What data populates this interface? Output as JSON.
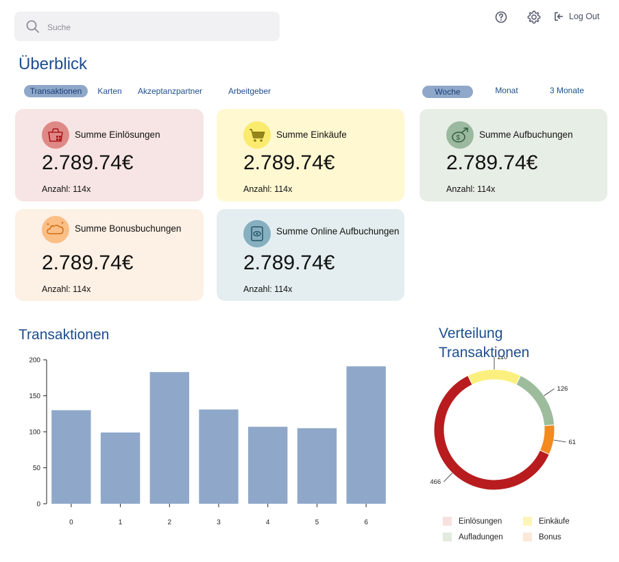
{
  "search": {
    "placeholder": "Suche"
  },
  "header": {
    "help_icon": "help-circle-icon",
    "settings_icon": "gear-icon",
    "logout_label": "Log Out"
  },
  "page_title": "Überblick",
  "tabs": [
    {
      "label": "Transaktionen",
      "active": true
    },
    {
      "label": "Karten",
      "active": false
    },
    {
      "label": "Akzeptanzpartner",
      "active": false
    },
    {
      "label": "Arbeitgeber",
      "active": false
    }
  ],
  "periods": [
    {
      "label": "Woche",
      "active": true
    },
    {
      "label": "Monat",
      "active": false
    },
    {
      "label": "3 Monate",
      "active": false
    }
  ],
  "cards": [
    {
      "label": "Summe Einlösungen",
      "amount": "2.789.74€",
      "count": "Anzahl: 114x",
      "bg": "#f6e5e4",
      "icon_bg": "#df8987",
      "icon": "shopping-basket-icon"
    },
    {
      "label": "Summe Einkäufe",
      "amount": "2.789.74€",
      "count": "Anzahl: 114x",
      "bg": "#fff8d1",
      "icon_bg": "#faea6e",
      "icon": "shopping-cart-icon"
    },
    {
      "label": "Summe Aufbuchungen",
      "amount": "2.789.74€",
      "count": "Anzahl: 114x",
      "bg": "#e7eee5",
      "icon_bg": "#9bb99e",
      "icon": "dollar-arrow-icon"
    },
    {
      "label": "Summe Bonusbuchungen",
      "amount": "2.789.74€",
      "count": "Anzahl: 114x",
      "bg": "#fdf0e4",
      "icon_bg": "#fbbf86",
      "icon": "bonus-cloud-icon"
    },
    {
      "label": "Summe Online Aufbuchungen",
      "amount": "2.789.74€",
      "count": "Anzahl: 114x",
      "bg": "#e4eef0",
      "icon_bg": "#86afc0",
      "icon": "online-wallet-icon"
    }
  ],
  "transactions_title": "Transaktionen",
  "distribution_title_line1": "Verteilung",
  "distribution_title_line2": "Transaktionen",
  "colors": {
    "accent": "#1d4d8d",
    "bar": "#8fa8c9"
  },
  "chart_data": [
    {
      "type": "bar",
      "categories": [
        "0",
        "1",
        "2",
        "3",
        "4",
        "5",
        "6"
      ],
      "values": [
        130,
        99,
        183,
        131,
        107,
        105,
        191
      ],
      "ylim": [
        0,
        200
      ],
      "yticks": [
        0,
        50,
        100,
        150,
        200
      ],
      "title": "Transaktionen",
      "xlabel": "",
      "ylabel": "",
      "grid": false,
      "color": "#8fa8c9"
    },
    {
      "type": "pie",
      "donut": true,
      "title": "Verteilung Transaktionen",
      "slices": [
        {
          "label": "Einkäufe",
          "value": 110,
          "color": "#fbf07e"
        },
        {
          "label": "Aufladungen",
          "value": 126,
          "color": "#9dbc9c"
        },
        {
          "label": "Bonus",
          "value": 61,
          "color": "#f28a1e"
        },
        {
          "label": "Einlösungen",
          "value": 466,
          "color": "#b81c1e"
        }
      ],
      "legend": [
        {
          "label": "Einlösungen",
          "color": "#f6e0e0"
        },
        {
          "label": "Einkäufe",
          "color": "#fdf4b8"
        },
        {
          "label": "Aufladungen",
          "color": "#e3ebe0"
        },
        {
          "label": "Bonus",
          "color": "#fde8d8"
        }
      ],
      "legend_position": "bottom"
    }
  ]
}
